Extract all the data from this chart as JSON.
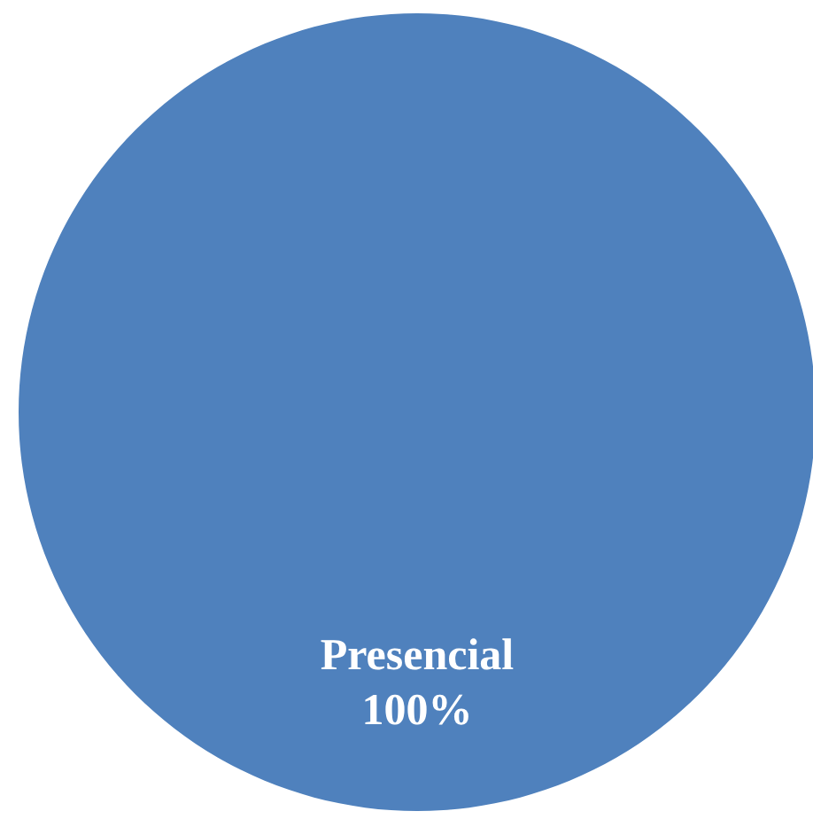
{
  "chart_data": {
    "type": "pie",
    "categories": [
      "Presencial"
    ],
    "values": [
      100
    ],
    "colors": [
      "#4f81bd"
    ],
    "value_labels": [
      "100%"
    ]
  }
}
